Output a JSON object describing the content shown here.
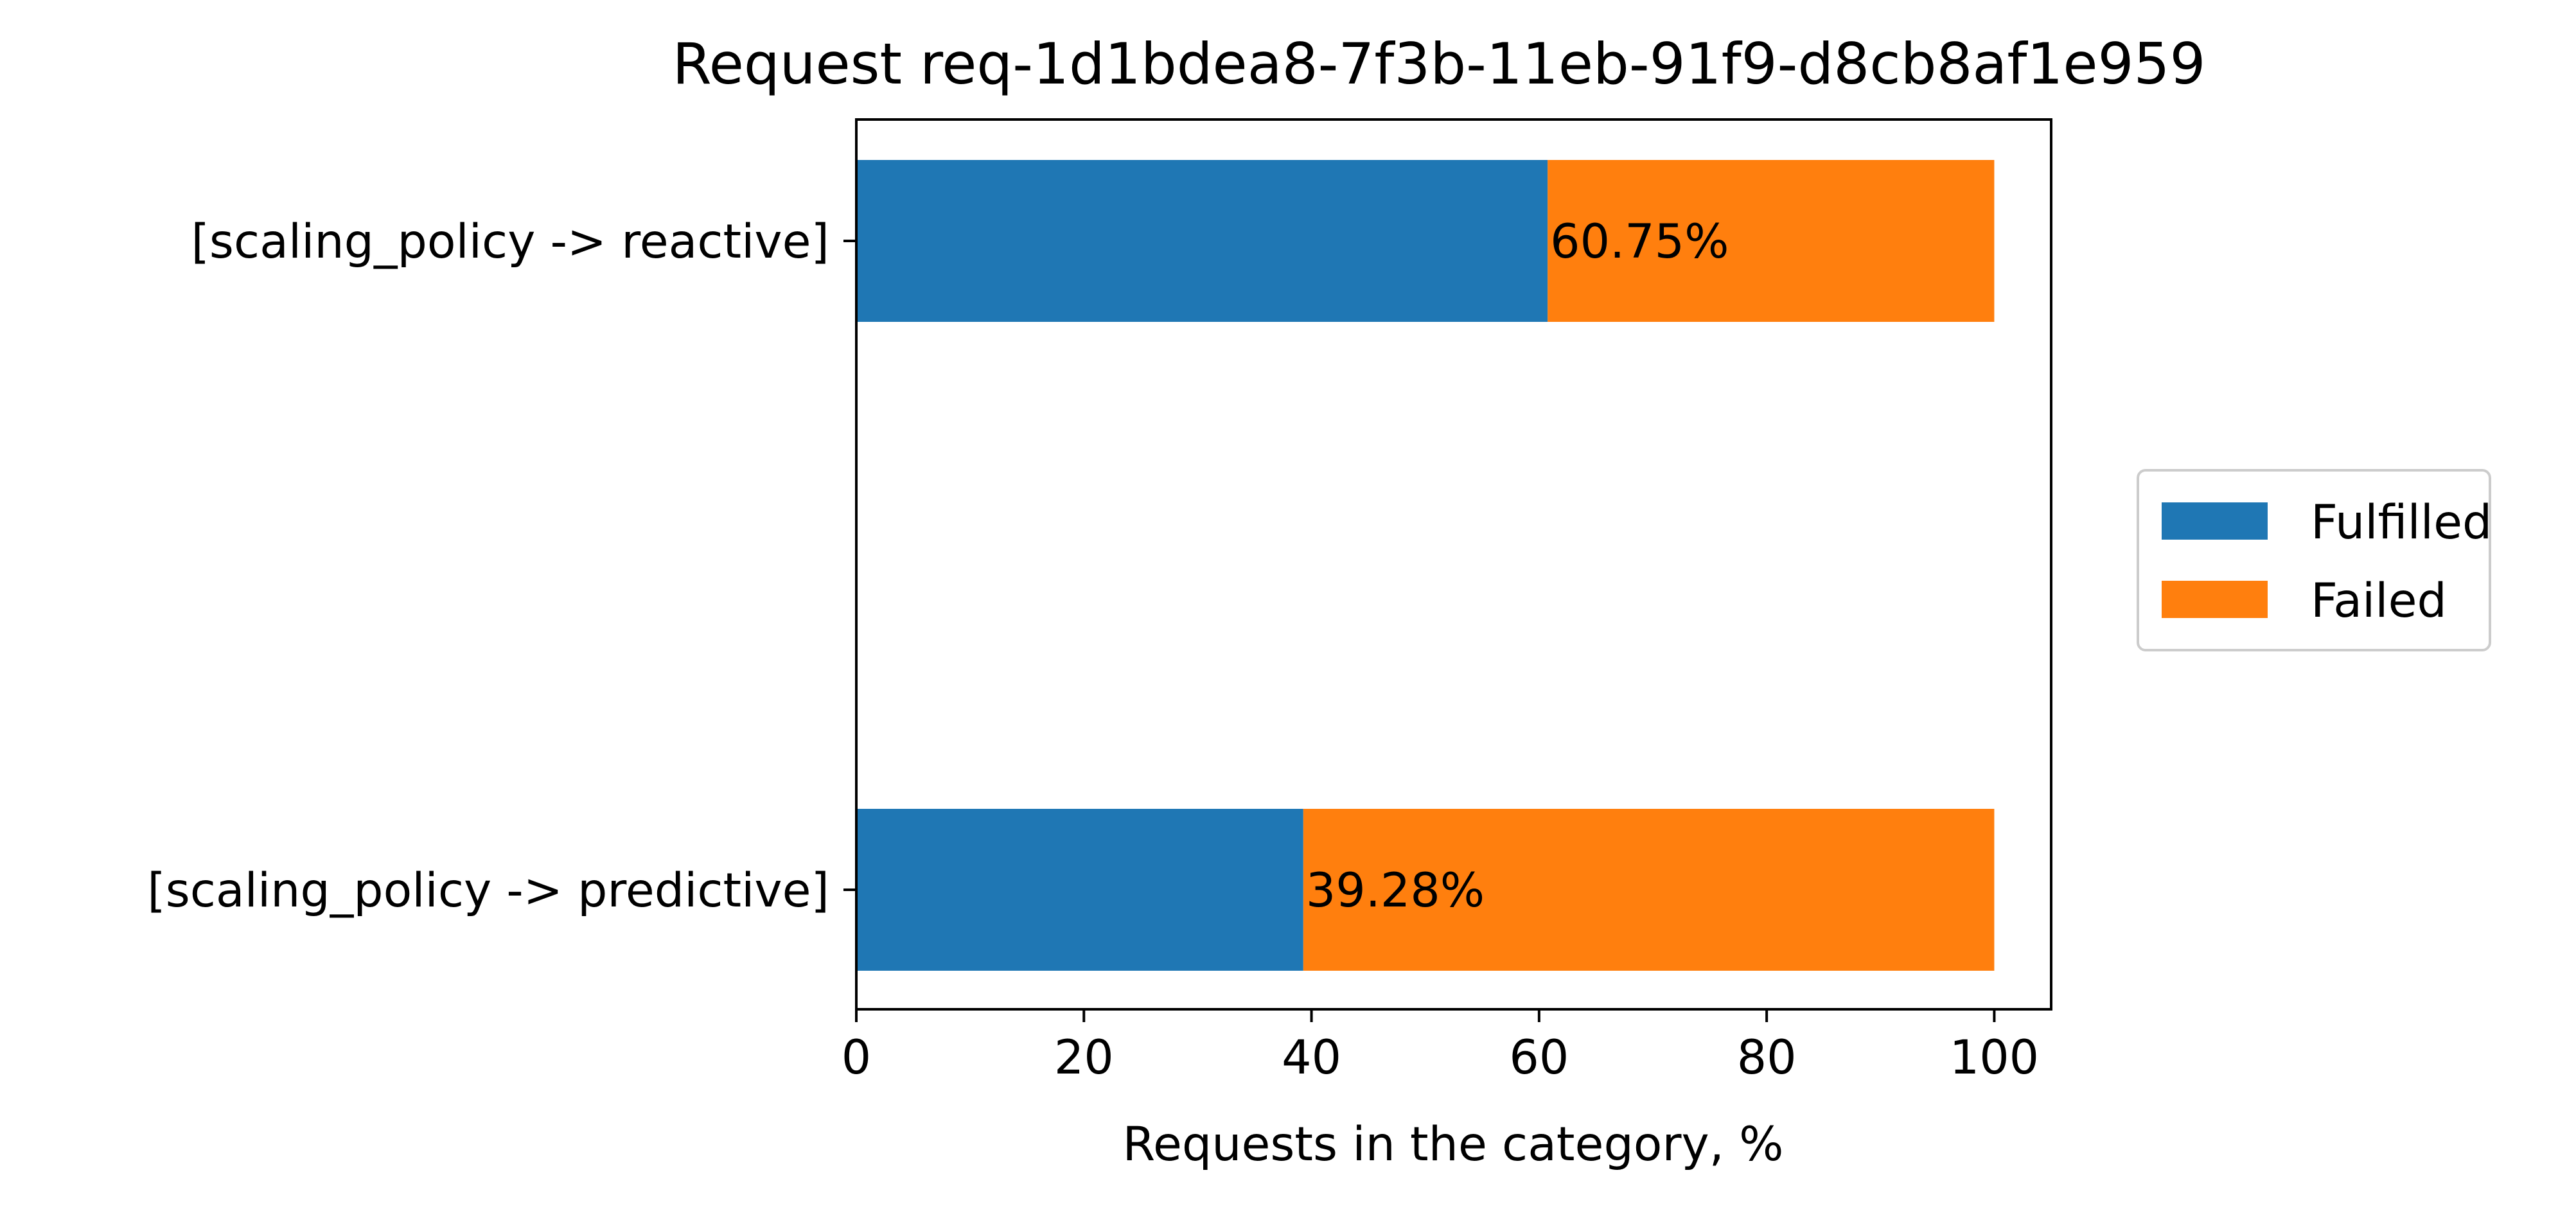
{
  "chart_data": {
    "type": "bar",
    "orientation": "horizontal",
    "stacked": true,
    "title": "Request req-1d1bdea8-7f3b-11eb-91f9-d8cb8af1e959",
    "xlabel": "Requests in the category, %",
    "ylabel": "",
    "xlim": [
      0,
      105
    ],
    "xticks": [
      0,
      20,
      40,
      60,
      80,
      100
    ],
    "grid": false,
    "legend_position": "right",
    "categories": [
      "[scaling_policy -> reactive]",
      "[scaling_policy -> predictive]"
    ],
    "series": [
      {
        "name": "Fulfilled",
        "color": "#1f77b4",
        "values": [
          60.75,
          39.28
        ]
      },
      {
        "name": "Failed",
        "color": "#ff7f0e",
        "values": [
          39.25,
          60.72
        ]
      }
    ],
    "data_labels": [
      "60.75%",
      "39.28%"
    ]
  }
}
